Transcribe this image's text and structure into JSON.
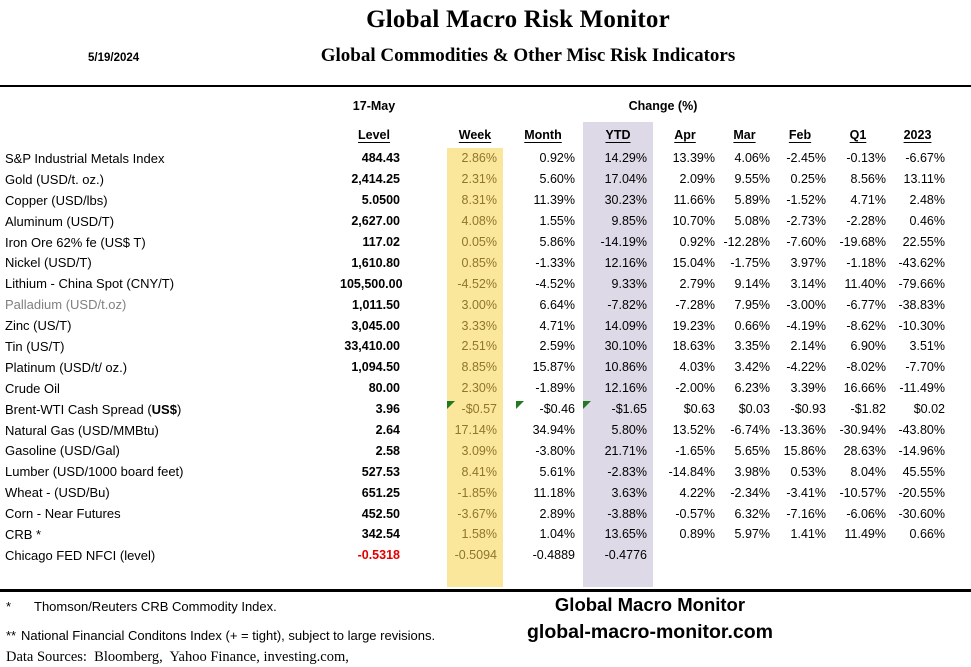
{
  "meta": {
    "date": "5/19/2024",
    "title": "Global Macro Risk Monitor",
    "subtitle": "Global Commodities & Other Misc Risk Indicators"
  },
  "table": {
    "as_of_label": "17-May",
    "change_label": "Change (%)",
    "columns": [
      "Level",
      "Week",
      "Month",
      "YTD",
      "Apr",
      "Mar",
      "Feb",
      "Q1",
      "2023"
    ],
    "rows": [
      {
        "label": "S&P Industrial Metals Index",
        "values": [
          "484.43",
          "2.86%",
          "0.92%",
          "14.29%",
          "13.39%",
          "4.06%",
          "-2.45%",
          "-0.13%",
          "-6.67%"
        ]
      },
      {
        "label": "Gold (USD/t. oz.)",
        "values": [
          "2,414.25",
          "2.31%",
          "5.60%",
          "17.04%",
          "2.09%",
          "9.55%",
          "0.25%",
          "8.56%",
          "13.11%"
        ]
      },
      {
        "label": "Copper (USD/lbs)",
        "values": [
          "5.0500",
          "8.31%",
          "11.39%",
          "30.23%",
          "11.66%",
          "5.89%",
          "-1.52%",
          "4.71%",
          "2.48%"
        ]
      },
      {
        "label": "Aluminum (USD/T)",
        "values": [
          "2,627.00",
          "4.08%",
          "1.55%",
          "9.85%",
          "10.70%",
          "5.08%",
          "-2.73%",
          "-2.28%",
          "0.46%"
        ]
      },
      {
        "label": "Iron Ore 62% fe (US$ T)",
        "values": [
          "117.02",
          "0.05%",
          "5.86%",
          "-14.19%",
          "0.92%",
          "-12.28%",
          "-7.60%",
          "-19.68%",
          "22.55%"
        ]
      },
      {
        "label": "Nickel (USD/T)",
        "values": [
          "1,610.80",
          "0.85%",
          "-1.33%",
          "12.16%",
          "15.04%",
          "-1.75%",
          "3.97%",
          "-1.18%",
          "-43.62%"
        ]
      },
      {
        "label": "Lithium - China Spot (CNY/T)",
        "values": [
          "105,500.00",
          "-4.52%",
          "-4.52%",
          "9.33%",
          "2.79%",
          "9.14%",
          "3.14%",
          "11.40%",
          "-79.66%"
        ]
      },
      {
        "label": "Palladium (USD/t.oz)",
        "muted": true,
        "values": [
          "1,011.50",
          "3.00%",
          "6.64%",
          "-7.82%",
          "-7.28%",
          "7.95%",
          "-3.00%",
          "-6.77%",
          "-38.83%"
        ]
      },
      {
        "label": "Zinc (US/T)",
        "values": [
          "3,045.00",
          "3.33%",
          "4.71%",
          "14.09%",
          "19.23%",
          "0.66%",
          "-4.19%",
          "-8.62%",
          "-10.30%"
        ]
      },
      {
        "label": "Tin (US/T)",
        "values": [
          "33,410.00",
          "2.51%",
          "2.59%",
          "30.10%",
          "18.63%",
          "3.35%",
          "2.14%",
          "6.90%",
          "3.51%"
        ]
      },
      {
        "label": "Platinum (USD/t/ oz.)",
        "values": [
          "1,094.50",
          "8.85%",
          "15.87%",
          "10.86%",
          "4.03%",
          "3.42%",
          "-4.22%",
          "-8.02%",
          "-7.70%"
        ]
      },
      {
        "label": "Crude Oil",
        "values": [
          "80.00",
          "2.30%",
          "-1.89%",
          "12.16%",
          "-2.00%",
          "6.23%",
          "3.39%",
          "16.66%",
          "-11.49%"
        ]
      },
      {
        "label": "Brent-WTI Cash Spread (US$)",
        "label_parts": [
          {
            "t": "Brent-WTI Cash Spread ("
          },
          {
            "t": "US$",
            "b": true
          },
          {
            "t": ")"
          }
        ],
        "triangles": [
          1,
          2,
          3
        ],
        "values": [
          "3.96",
          "-$0.57",
          "-$0.46",
          "-$1.65",
          "$0.63",
          "$0.03",
          "-$0.93",
          "-$1.82",
          "$0.02"
        ]
      },
      {
        "label": "Natural Gas  (USD/MMBtu)",
        "values": [
          "2.64",
          "17.14%",
          "34.94%",
          "5.80%",
          "13.52%",
          "-6.74%",
          "-13.36%",
          "-30.94%",
          "-43.80%"
        ]
      },
      {
        "label": "Gasoline (USD/Gal)",
        "values": [
          "2.58",
          "3.09%",
          "-3.80%",
          "21.71%",
          "-1.65%",
          "5.65%",
          "15.86%",
          "28.63%",
          "-14.96%"
        ]
      },
      {
        "label": "Lumber (USD/1000 board feet)",
        "values": [
          "527.53",
          "8.41%",
          "5.61%",
          "-2.83%",
          "-14.84%",
          "3.98%",
          "0.53%",
          "8.04%",
          "45.55%"
        ]
      },
      {
        "label": "Wheat - (USD/Bu)",
        "values": [
          "651.25",
          "-1.85%",
          "11.18%",
          "3.63%",
          "4.22%",
          "-2.34%",
          "-3.41%",
          "-10.57%",
          "-20.55%"
        ]
      },
      {
        "label": "Corn - Near Futures",
        "values": [
          "452.50",
          "-3.67%",
          "2.89%",
          "-3.88%",
          "-0.57%",
          "6.32%",
          "-7.16%",
          "-6.06%",
          "-30.60%"
        ]
      },
      {
        "label": "CRB *",
        "values": [
          "342.54",
          "1.58%",
          "1.04%",
          "13.65%",
          "0.89%",
          "5.97%",
          "1.41%",
          "11.49%",
          "0.66%"
        ]
      },
      {
        "label": "Chicago FED NFCI (level)",
        "level_red": true,
        "values": [
          "-0.5318",
          "-0.5094",
          "-0.4889",
          "-0.4776",
          "",
          "",
          "",
          "",
          ""
        ]
      }
    ]
  },
  "footer": {
    "note1_marker": "*",
    "note1_text": "Thomson/Reuters CRB Commodity Index.",
    "note2_marker": "**",
    "note2_text": "National Financial Conditons Index (+ = tight), subject to large revisions.",
    "note3_text": "Data Sources:  Bloomberg,  Yahoo Finance, investing.com,",
    "brand": "Global Macro Monitor",
    "brand_url": "global-macro-monitor.com"
  },
  "colors": {
    "week_bg": "#FBE79C",
    "week_text": "#8E762B",
    "ytd_bg": "#DDD9E7",
    "neg_red": "#E00000",
    "triangle_green": "#217A21"
  }
}
